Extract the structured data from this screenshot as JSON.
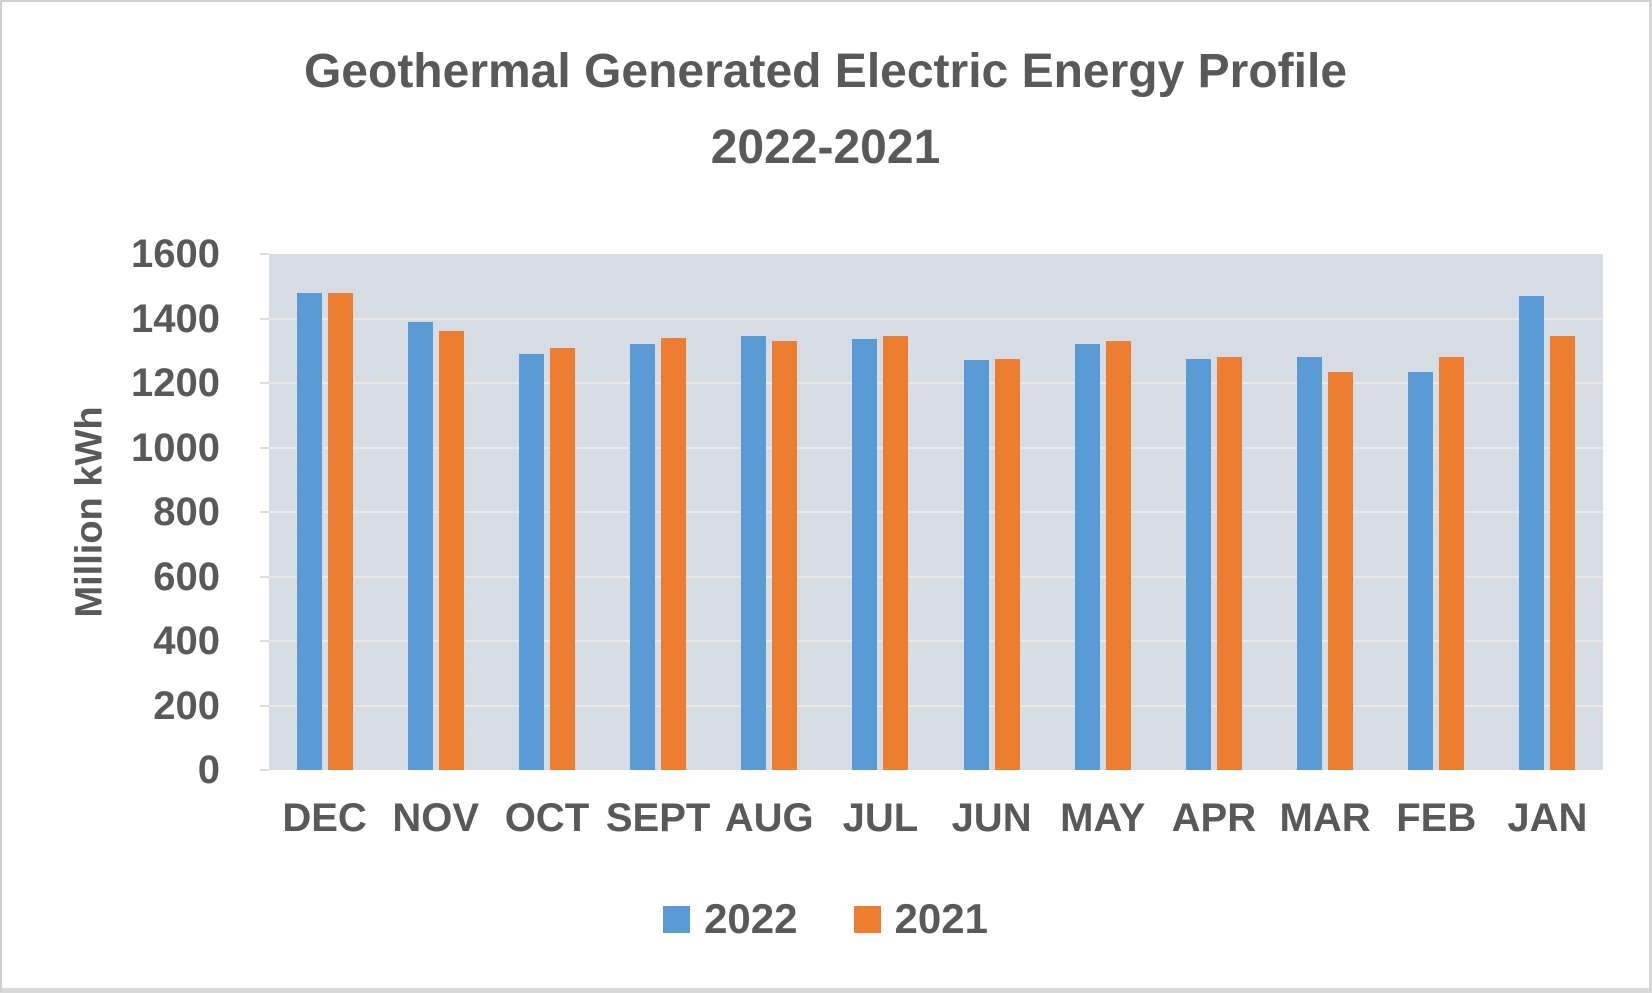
{
  "title": {
    "line1": "Geothermal Generated Electric Energy Profile",
    "line2": "2022-2021"
  },
  "y_axis": {
    "title": "Million kWh",
    "tick_labels": [
      "0",
      "200",
      "400",
      "600",
      "800",
      "1000",
      "1200",
      "1400",
      "1600"
    ]
  },
  "legend": {
    "items": [
      {
        "label": "2022",
        "color": "#5B9BD5"
      },
      {
        "label": "2021",
        "color": "#ED7D31"
      }
    ]
  },
  "colors": {
    "text": "#595959",
    "plot_background": "#D6DCE4",
    "gridline": "#ECE7E4",
    "series_2022": "#5B9BD5",
    "series_2021": "#ED7D31"
  },
  "chart_data": {
    "type": "bar",
    "title": "Geothermal Generated Electric Energy Profile 2022-2021",
    "xlabel": "",
    "ylabel": "Million kWh",
    "ylim": [
      0,
      1600
    ],
    "ytick_step": 200,
    "grid": "horizontal",
    "legend_position": "bottom",
    "categories": [
      "DEC",
      "NOV",
      "OCT",
      "SEPT",
      "AUG",
      "JUL",
      "JUN",
      "MAY",
      "APR",
      "MAR",
      "FEB",
      "JAN"
    ],
    "series": [
      {
        "name": "2022",
        "color": "#5B9BD5",
        "values": [
          1480,
          1390,
          1290,
          1320,
          1345,
          1335,
          1270,
          1320,
          1275,
          1280,
          1235,
          1470
        ]
      },
      {
        "name": "2021",
        "color": "#ED7D31",
        "values": [
          1480,
          1360,
          1310,
          1340,
          1330,
          1345,
          1275,
          1330,
          1280,
          1235,
          1280,
          1345
        ]
      }
    ]
  }
}
